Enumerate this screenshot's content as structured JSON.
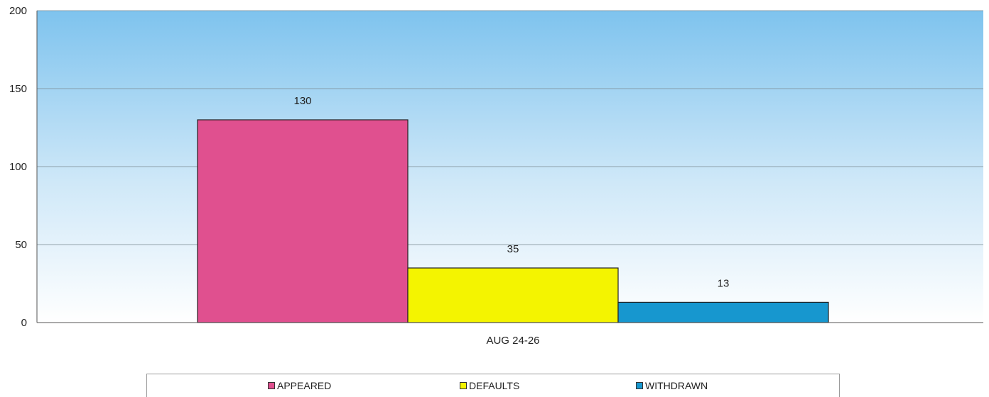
{
  "chart_data": {
    "type": "bar",
    "categories": [
      "AUG 24-26"
    ],
    "series": [
      {
        "name": "APPEARED",
        "values": [
          130
        ],
        "color": "#e0508f"
      },
      {
        "name": "DEFAULTS",
        "values": [
          35
        ],
        "color": "#f4f400"
      },
      {
        "name": "WITHDRAWN",
        "values": [
          13
        ],
        "color": "#1797cf"
      }
    ],
    "data_labels": [
      "130",
      "35",
      "13"
    ],
    "yticks": [
      "0",
      "50",
      "100",
      "150",
      "200"
    ],
    "ylim": [
      0,
      200
    ],
    "grid": true,
    "legend_position": "bottom",
    "background": "gradient sky-blue to white"
  }
}
